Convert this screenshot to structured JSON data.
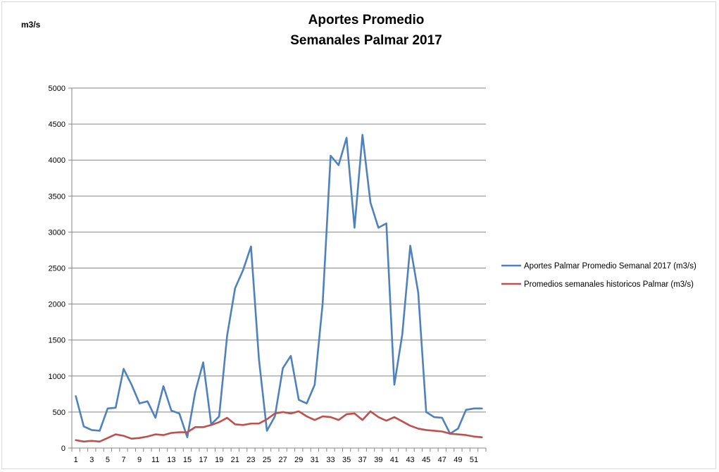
{
  "chart_data": {
    "type": "line",
    "title_line1": "Aportes Promedio",
    "title_line2": "Semanales  Palmar 2017",
    "ylabel": "m3/s",
    "xlabel": "",
    "ylim": [
      0,
      5000
    ],
    "yticks": [
      0,
      500,
      1000,
      1500,
      2000,
      2500,
      3000,
      3500,
      4000,
      4500,
      5000
    ],
    "x": [
      1,
      2,
      3,
      4,
      5,
      6,
      7,
      8,
      9,
      10,
      11,
      12,
      13,
      14,
      15,
      16,
      17,
      18,
      19,
      20,
      21,
      22,
      23,
      24,
      25,
      26,
      27,
      28,
      29,
      30,
      31,
      32,
      33,
      34,
      35,
      36,
      37,
      38,
      39,
      40,
      41,
      42,
      43,
      44,
      45,
      46,
      47,
      48,
      49,
      50,
      51,
      52
    ],
    "xtick_labels": [
      1,
      3,
      5,
      7,
      9,
      11,
      13,
      15,
      17,
      19,
      21,
      23,
      25,
      27,
      29,
      31,
      33,
      35,
      37,
      39,
      41,
      43,
      45,
      47,
      49,
      51
    ],
    "grid": true,
    "legend_position": "right",
    "series": [
      {
        "name": "Aportes Palmar  Promedio Semanal 2017 (m3/s)",
        "color": "#4f81bd",
        "values": [
          720,
          300,
          250,
          240,
          550,
          560,
          1100,
          880,
          620,
          650,
          420,
          860,
          520,
          480,
          150,
          780,
          1190,
          330,
          440,
          1560,
          2220,
          2470,
          2800,
          1230,
          240,
          440,
          1110,
          1280,
          670,
          620,
          880,
          2010,
          4060,
          3930,
          4310,
          3060,
          4350,
          3410,
          3060,
          3120,
          880,
          1580,
          2810,
          2160,
          500,
          430,
          420,
          200,
          270,
          530,
          550,
          550
        ]
      },
      {
        "name": "Promedios semanales historicos Palmar (m3/s)",
        "color": "#c0504d",
        "values": [
          110,
          90,
          100,
          90,
          140,
          190,
          170,
          130,
          140,
          160,
          190,
          180,
          210,
          220,
          220,
          290,
          290,
          320,
          360,
          420,
          330,
          320,
          340,
          340,
          400,
          480,
          500,
          480,
          510,
          440,
          390,
          440,
          430,
          390,
          470,
          480,
          390,
          510,
          430,
          380,
          430,
          370,
          310,
          270,
          250,
          240,
          230,
          200,
          190,
          180,
          160,
          150
        ]
      }
    ]
  }
}
